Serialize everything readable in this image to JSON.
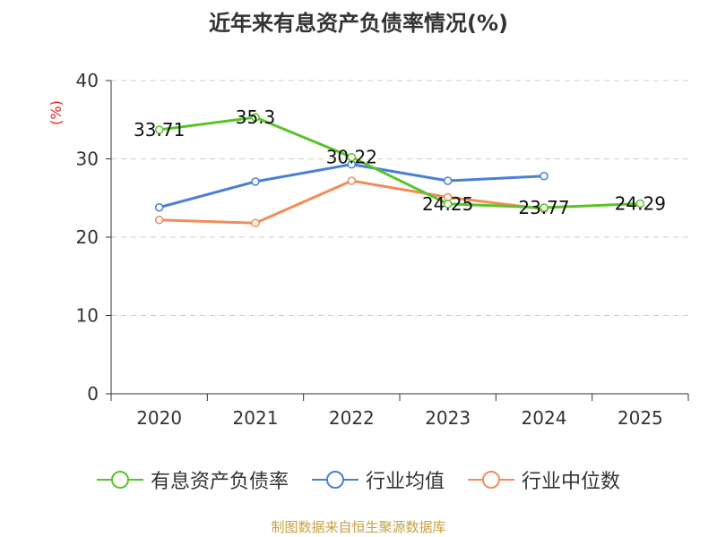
{
  "chart_data": {
    "type": "line",
    "title": "近年来有息资产负债率情况(%)",
    "ylabel": "(%)",
    "xlabel": "",
    "categories": [
      "2020",
      "2021",
      "2022",
      "2023",
      "2024",
      "2025"
    ],
    "ylim": [
      0,
      40
    ],
    "yticks": [
      0,
      10,
      20,
      30,
      40
    ],
    "grid": true,
    "legend_position": "bottom",
    "series": [
      {
        "name": "有息资产负债率",
        "color": "#5ac328",
        "values": [
          33.71,
          35.3,
          30.22,
          24.25,
          23.77,
          24.29
        ],
        "labels": [
          "33.71",
          "35.3",
          "30.22",
          "24.25",
          "23.77",
          "24.29"
        ]
      },
      {
        "name": "行业均值",
        "color": "#4a7fd9",
        "values": [
          23.8,
          27.1,
          29.3,
          27.2,
          27.8,
          null
        ]
      },
      {
        "name": "行业中位数",
        "color": "#f28d5a",
        "values": [
          22.2,
          21.8,
          27.2,
          25.1,
          23.6,
          null
        ]
      }
    ]
  },
  "source_note": "制图数据来自恒生聚源数据库"
}
